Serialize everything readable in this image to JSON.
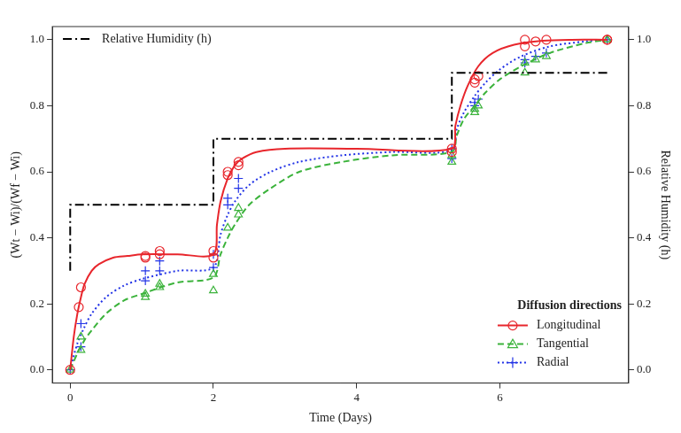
{
  "chart_data": {
    "type": "scatter",
    "x_label": "Time (Days)",
    "y_label": "(Wt − Wi)/(Wf − Wi)",
    "y2_label": "Relative Humidity (h)",
    "legend_title": "Diffusion directions",
    "legend": "lower right",
    "grid": false,
    "xlim": [
      -0.25,
      7.8
    ],
    "xticks": [
      0,
      2,
      4,
      6
    ],
    "ylim": [
      -0.04,
      1.04
    ],
    "yticks": [
      {
        "value": 0,
        "label": "0.0"
      },
      0.2,
      0.4,
      0.6,
      0.8,
      {
        "value": 1,
        "label": "1.0"
      }
    ],
    "y2lim": [
      -0.04,
      1.04
    ],
    "y2ticks": [
      {
        "value": 0,
        "label": "0.0"
      },
      0.2,
      0.4,
      0.6,
      0.8,
      {
        "value": 1,
        "label": "1.0"
      }
    ],
    "series": [
      {
        "name": "Relative Humidity (h)",
        "axis": "y2",
        "type": "line",
        "color": "#000000",
        "marker": "none",
        "line_style": "dashdot",
        "x": [
          0,
          0,
          2,
          2,
          5.33,
          5.33,
          7.5
        ],
        "values": [
          0.3,
          0.5,
          0.5,
          0.7,
          0.7,
          0.9,
          0.9
        ]
      },
      {
        "name": "Longitudinal",
        "color": "#e8262c",
        "marker": "circle",
        "line_style": "solid",
        "x": [
          0,
          0.12,
          0.15,
          1.05,
          1.05,
          1.25,
          1.25,
          2,
          2,
          2.2,
          2.2,
          2.35,
          2.35,
          5.33,
          5.33,
          5.65,
          5.65,
          5.7,
          6.35,
          6.35,
          6.5,
          6.65,
          7.5,
          7.5
        ],
        "values": [
          0,
          0.19,
          0.25,
          0.34,
          0.345,
          0.35,
          0.36,
          0.34,
          0.36,
          0.59,
          0.6,
          0.62,
          0.63,
          0.66,
          0.67,
          0.87,
          0.88,
          0.89,
          0.98,
          1.0,
          0.995,
          1.0,
          1.0,
          1.0
        ],
        "fit": {
          "x": [
            0,
            0.05,
            0.1,
            0.15,
            0.2,
            0.3,
            0.4,
            0.6,
            0.8,
            1.0,
            1.5,
            2.0,
            2.05,
            2.1,
            2.2,
            2.3,
            2.4,
            2.6,
            3.0,
            4.0,
            5.33,
            5.38,
            5.45,
            5.55,
            5.7,
            5.9,
            6.2,
            6.6,
            7.0,
            7.5
          ],
          "values": [
            0,
            0.1,
            0.17,
            0.22,
            0.26,
            0.3,
            0.32,
            0.34,
            0.345,
            0.35,
            0.35,
            0.35,
            0.44,
            0.51,
            0.58,
            0.62,
            0.64,
            0.66,
            0.67,
            0.67,
            0.67,
            0.74,
            0.8,
            0.86,
            0.92,
            0.96,
            0.985,
            0.997,
            1.0,
            1.0
          ]
        }
      },
      {
        "name": "Tangential",
        "color": "#3cb33c",
        "marker": "triangle",
        "line_style": "dashed",
        "x": [
          0,
          0.15,
          0.15,
          1.05,
          1.05,
          1.25,
          1.25,
          2,
          2,
          2.2,
          2.35,
          2.35,
          5.33,
          5.33,
          5.65,
          5.65,
          5.7,
          6.35,
          6.35,
          6.5,
          6.65,
          7.5,
          7.5
        ],
        "values": [
          0,
          0.06,
          0.1,
          0.22,
          0.23,
          0.25,
          0.26,
          0.24,
          0.29,
          0.43,
          0.47,
          0.49,
          0.63,
          0.65,
          0.78,
          0.79,
          0.8,
          0.9,
          0.93,
          0.94,
          0.95,
          1.0,
          1.0
        ],
        "fit": {
          "x": [
            0,
            0.1,
            0.2,
            0.3,
            0.5,
            0.75,
            1.0,
            1.5,
            2.0,
            2.1,
            2.2,
            2.3,
            2.5,
            2.8,
            3.2,
            3.8,
            4.5,
            5.33,
            5.4,
            5.5,
            5.65,
            5.8,
            6.0,
            6.3,
            6.7,
            7.2,
            7.5
          ],
          "values": [
            0,
            0.05,
            0.09,
            0.12,
            0.17,
            0.21,
            0.23,
            0.265,
            0.28,
            0.35,
            0.4,
            0.44,
            0.5,
            0.55,
            0.6,
            0.63,
            0.65,
            0.66,
            0.71,
            0.76,
            0.8,
            0.84,
            0.88,
            0.92,
            0.96,
            0.99,
            1.0
          ]
        }
      },
      {
        "name": "Radial",
        "color": "#2233e6",
        "marker": "plus",
        "line_style": "dotted",
        "x": [
          0,
          0.15,
          0.15,
          1.05,
          1.05,
          1.25,
          1.25,
          2,
          2,
          2.2,
          2.2,
          2.35,
          2.35,
          5.33,
          5.33,
          5.65,
          5.65,
          5.7,
          6.35,
          6.35,
          6.5,
          6.65,
          7.5
        ],
        "values": [
          0,
          0.07,
          0.14,
          0.27,
          0.3,
          0.3,
          0.33,
          0.31,
          0.35,
          0.5,
          0.52,
          0.55,
          0.58,
          0.64,
          0.67,
          0.8,
          0.81,
          0.82,
          0.93,
          0.94,
          0.95,
          0.96,
          1.0
        ],
        "fit": {
          "x": [
            0,
            0.1,
            0.2,
            0.3,
            0.5,
            0.75,
            1.0,
            1.5,
            2.0,
            2.1,
            2.2,
            2.3,
            2.5,
            2.8,
            3.2,
            3.8,
            4.5,
            5.33,
            5.4,
            5.5,
            5.65,
            5.8,
            6.0,
            6.3,
            6.7,
            7.2,
            7.5
          ],
          "values": [
            0,
            0.08,
            0.13,
            0.17,
            0.22,
            0.255,
            0.275,
            0.3,
            0.31,
            0.41,
            0.47,
            0.51,
            0.56,
            0.6,
            0.63,
            0.65,
            0.66,
            0.665,
            0.73,
            0.78,
            0.83,
            0.87,
            0.91,
            0.95,
            0.98,
            0.995,
            1.0
          ]
        }
      }
    ]
  }
}
